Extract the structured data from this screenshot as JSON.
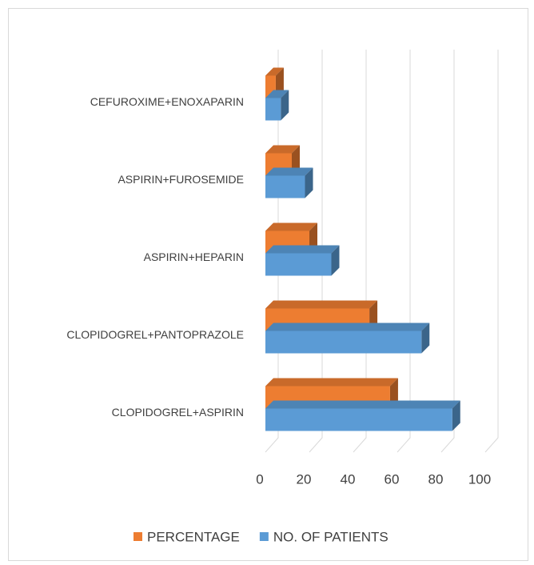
{
  "chart_data": {
    "type": "bar3d_horizontal",
    "categories": [
      "CLOPIDOGREL+ASPIRIN",
      "CLOPIDOGREL+PANTOPRAZOLE",
      "ASPIRIN+HEPARIN",
      "ASPIRIN+FUROSEMIDE",
      "CEFUROXIME+ENOXAPARIN"
    ],
    "series": [
      {
        "name": "PERCENTAGE",
        "color": "#ed7d31",
        "values": [
          56.7,
          47.3,
          20,
          12,
          4.7
        ]
      },
      {
        "name": "NO. OF PATIENTS",
        "color": "#5b9bd5",
        "values": [
          85,
          71,
          30,
          18,
          7
        ]
      }
    ],
    "xlim": [
      0,
      100
    ],
    "xticks": [
      0,
      20,
      40,
      60,
      80,
      100
    ],
    "grid": true,
    "legend": "bottom"
  }
}
